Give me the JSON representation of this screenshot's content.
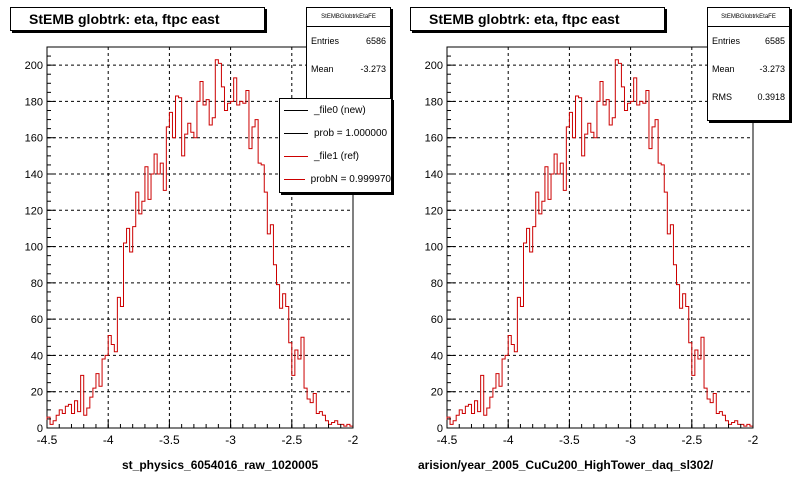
{
  "colors": {
    "new": "#000000",
    "ref": "#cc0000"
  },
  "panels": [
    {
      "title": "StEMB globtrk: eta, ftpc east",
      "stats": {
        "title": "StEMBGlobtrkEtaFE",
        "rows": [
          {
            "label": "Entries",
            "value": "6586"
          },
          {
            "label": "Mean",
            "value": "-3.273"
          }
        ]
      },
      "legend": [
        {
          "label": "_file0 (new)",
          "color": "#000000"
        },
        {
          "label": "prob = 1.000000",
          "color": "#000000"
        },
        {
          "label": "_file1 (ref)",
          "color": "#cc0000"
        },
        {
          "label": "probN = 0.999970",
          "color": "#cc0000"
        }
      ],
      "xcaption": "st_physics_6054016_raw_1020005"
    },
    {
      "title": "StEMB globtrk: eta, ftpc east",
      "stats": {
        "title": "StEMBGlobtrkEtaFE",
        "rows": [
          {
            "label": "Entries",
            "value": "6585"
          },
          {
            "label": "Mean",
            "value": "-3.273"
          },
          {
            "label": "RMS",
            "value": "0.3918"
          }
        ]
      },
      "legend": [],
      "xcaption": "arision/year_2005_CuCu200_HighTower_daq_sl302/"
    }
  ],
  "chart_data": [
    {
      "type": "histogram",
      "title": "StEMB globtrk: eta, ftpc east",
      "xlim": [
        -4.5,
        -2.0
      ],
      "ylim": [
        0,
        210
      ],
      "xticks": [
        "-4.5",
        "-4",
        "-3.5",
        "-3",
        "-2.5",
        "-2"
      ],
      "yticks": [
        "0",
        "20",
        "40",
        "60",
        "80",
        "100",
        "120",
        "140",
        "160",
        "180",
        "200"
      ],
      "grid": true,
      "bin_width": 0.025,
      "x_start": -4.5,
      "series": [
        {
          "name": "_file1 (ref)",
          "values": [
            6,
            2,
            4,
            7,
            10,
            8,
            12,
            13,
            8,
            15,
            9,
            29,
            7,
            11,
            17,
            22,
            30,
            23,
            38,
            40,
            51,
            46,
            42,
            72,
            67,
            102,
            110,
            97,
            111,
            130,
            118,
            125,
            144,
            126,
            140,
            151,
            140,
            146,
            131,
            166,
            174,
            160,
            183,
            182,
            150,
            162,
            168,
            163,
            160,
            180,
            191,
            178,
            181,
            167,
            171,
            203,
            201,
            188,
            175,
            179,
            180,
            193,
            178,
            180,
            179,
            186,
            154,
            166,
            170,
            146,
            145,
            130,
            107,
            112,
            90,
            79,
            66,
            74,
            67,
            47,
            29,
            43,
            38,
            50,
            22,
            16,
            14,
            19,
            8,
            9,
            7,
            4,
            2,
            3,
            4,
            2,
            2,
            1,
            2,
            1
          ]
        }
      ]
    },
    {
      "type": "histogram",
      "title": "StEMB globtrk: eta, ftpc east",
      "xlim": [
        -4.5,
        -2.0
      ],
      "ylim": [
        0,
        210
      ],
      "xticks": [
        "-4.5",
        "-4",
        "-3.5",
        "-3",
        "-2.5",
        "-2"
      ],
      "yticks": [
        "0",
        "20",
        "40",
        "60",
        "80",
        "100",
        "120",
        "140",
        "160",
        "180",
        "200"
      ],
      "grid": true,
      "bin_width": 0.025,
      "x_start": -4.5,
      "series": [
        {
          "name": "_file1 (ref)",
          "values": [
            6,
            2,
            4,
            7,
            10,
            8,
            12,
            13,
            8,
            15,
            9,
            29,
            7,
            11,
            17,
            22,
            30,
            23,
            38,
            40,
            51,
            46,
            42,
            72,
            67,
            102,
            110,
            97,
            111,
            130,
            118,
            125,
            144,
            126,
            140,
            151,
            140,
            146,
            131,
            166,
            174,
            160,
            183,
            182,
            150,
            162,
            168,
            163,
            160,
            180,
            191,
            178,
            181,
            167,
            171,
            203,
            201,
            188,
            175,
            179,
            180,
            193,
            178,
            180,
            179,
            186,
            154,
            166,
            170,
            146,
            145,
            130,
            107,
            112,
            90,
            79,
            66,
            74,
            67,
            47,
            29,
            43,
            38,
            50,
            22,
            16,
            14,
            19,
            8,
            9,
            7,
            4,
            2,
            3,
            4,
            2,
            2,
            1,
            2,
            1
          ]
        }
      ]
    }
  ]
}
